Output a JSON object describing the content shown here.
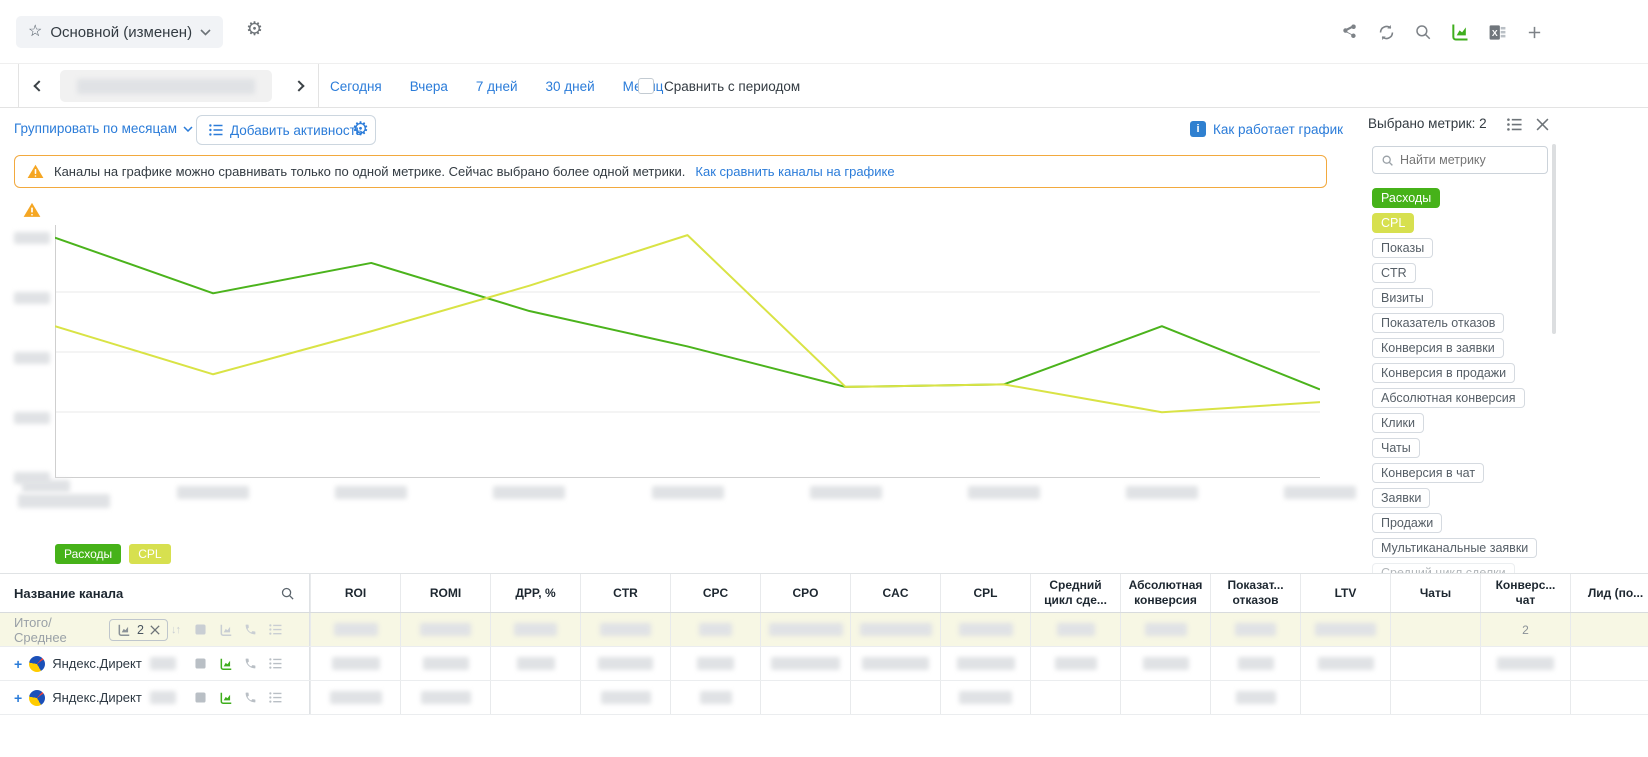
{
  "report": {
    "title": "Основной (изменен)"
  },
  "period_bar": {
    "presets": [
      "Сегодня",
      "Вчера",
      "7 дней",
      "30 дней",
      "Месяц"
    ],
    "compare_label": "Сравнить с периодом",
    "date_range_redacted": true
  },
  "controls": {
    "group_by_label": "Группировать по месяцам",
    "add_activity_label": "Добавить активность",
    "how_chart_works_label": "Как работает график"
  },
  "warning": {
    "text": "Каналы на графике можно сравнивать только по одной метрике. Сейчас выбрано более одной метрики.",
    "link_label": "Как сравнить каналы на графике"
  },
  "metrics_panel": {
    "header": "Выбрано метрик: 2",
    "search_placeholder": "Найти метрику",
    "selected": [
      {
        "label": "Расходы",
        "color": "#46b219"
      },
      {
        "label": "CPL",
        "color": "#d7e04f"
      }
    ],
    "available": [
      "Показы",
      "CTR",
      "Визиты",
      "Показатель отказов",
      "Конверсия в заявки",
      "Конверсия в продажи",
      "Абсолютная конверсия",
      "Клики",
      "Чаты",
      "Конверсия в чат",
      "Заявки",
      "Продажи",
      "Мультиканальные заявки"
    ],
    "cutoff_item": "Средний цикл сделки"
  },
  "chart_data": {
    "type": "line",
    "x_tick_count": 9,
    "y_tick_count": 5,
    "ticks_redacted": true,
    "x": [
      1,
      2,
      3,
      4,
      5,
      6,
      7,
      8,
      9
    ],
    "ylim": [
      0,
      100
    ],
    "series": [
      {
        "name": "Расходы",
        "color": "#4bb31c",
        "values": [
          95,
          73,
          85,
          66,
          52,
          36,
          37,
          60,
          35
        ]
      },
      {
        "name": "CPL",
        "color": "#d9e345",
        "values": [
          60,
          41,
          58,
          76,
          96,
          36,
          37,
          26,
          30
        ]
      }
    ]
  },
  "table": {
    "name_header": "Название канала",
    "columns": [
      "ROI",
      "ROMI",
      "ДРР, %",
      "CTR",
      "CPC",
      "CPO",
      "CAC",
      "CPL",
      "Средний цикл сде...",
      "Абсолютная конверсия",
      "Показат... отказов",
      "LTV",
      "Чаты",
      "Конверс... чат",
      "Лид (по..."
    ],
    "total_row_chip_count": "2",
    "rows": [
      {
        "type": "total",
        "name": "Итого/Среднее",
        "cells": [
          "#",
          "#",
          "#",
          "#",
          "#",
          "#",
          "#",
          "#",
          "#",
          "#",
          "#",
          "#",
          "",
          "2",
          ""
        ]
      },
      {
        "type": "channel",
        "name": "Яндекс.Директ",
        "cells": [
          "#",
          "#",
          "#",
          "#",
          "#",
          "#",
          "#",
          "#",
          "#",
          "#",
          "#",
          "#",
          "",
          "#",
          ""
        ]
      },
      {
        "type": "channel",
        "name": "Яндекс.Директ",
        "cells": [
          "#",
          "#",
          "",
          "#",
          "#",
          "",
          "",
          "#",
          "",
          "",
          "#",
          "",
          "",
          "",
          ""
        ]
      }
    ]
  }
}
